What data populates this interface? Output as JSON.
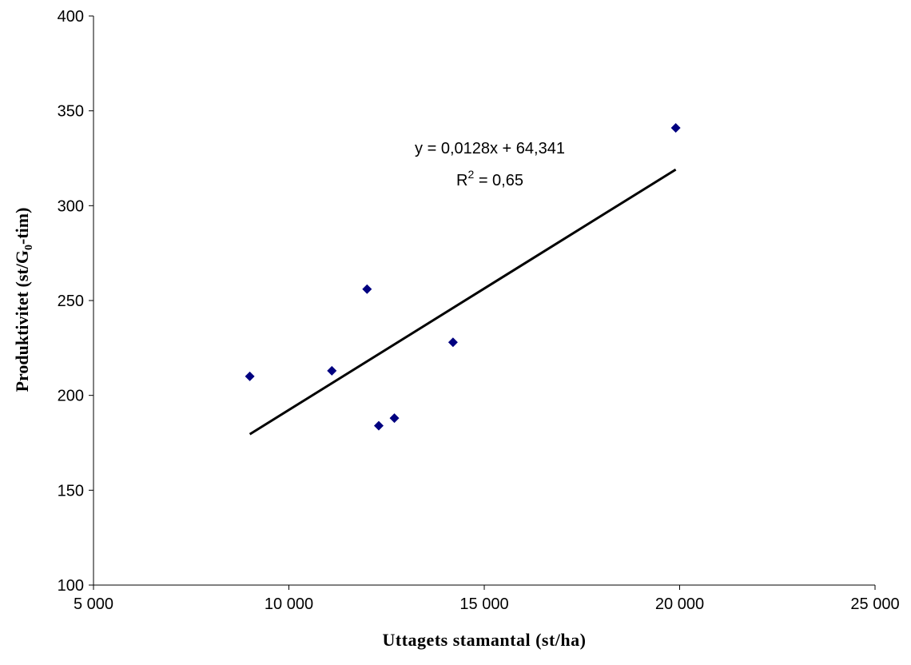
{
  "chart_data": {
    "type": "scatter",
    "title": "",
    "xlabel": "Uttagets stamantal (st/ha)",
    "ylabel_prefix": "Produktivitet (st/G",
    "ylabel_sub": "0",
    "ylabel_suffix": "-tim)",
    "xlim": [
      5000,
      25000
    ],
    "ylim": [
      100,
      400
    ],
    "x_ticks": [
      5000,
      10000,
      15000,
      20000,
      25000
    ],
    "x_tick_labels": [
      "5 000",
      "10 000",
      "15 000",
      "20 000",
      "25 000"
    ],
    "y_ticks": [
      100,
      150,
      200,
      250,
      300,
      350,
      400
    ],
    "y_tick_labels": [
      "100",
      "150",
      "200",
      "250",
      "300",
      "350",
      "400"
    ],
    "grid": false,
    "series": [
      {
        "marker": "diamond",
        "color": "#000080",
        "points": [
          {
            "x": 9000,
            "y": 210
          },
          {
            "x": 11100,
            "y": 213
          },
          {
            "x": 12000,
            "y": 256
          },
          {
            "x": 12300,
            "y": 184
          },
          {
            "x": 12700,
            "y": 188
          },
          {
            "x": 14200,
            "y": 228
          },
          {
            "x": 19900,
            "y": 341
          }
        ]
      }
    ],
    "trendline": {
      "type": "linear",
      "slope": 0.0128,
      "intercept": 64.341,
      "x_range": [
        9000,
        19900
      ],
      "color": "#000000",
      "equation": "y = 0,0128x + 64,341",
      "r2_label": "R",
      "r2_exp": "2",
      "r2_value": " = 0,65"
    }
  }
}
